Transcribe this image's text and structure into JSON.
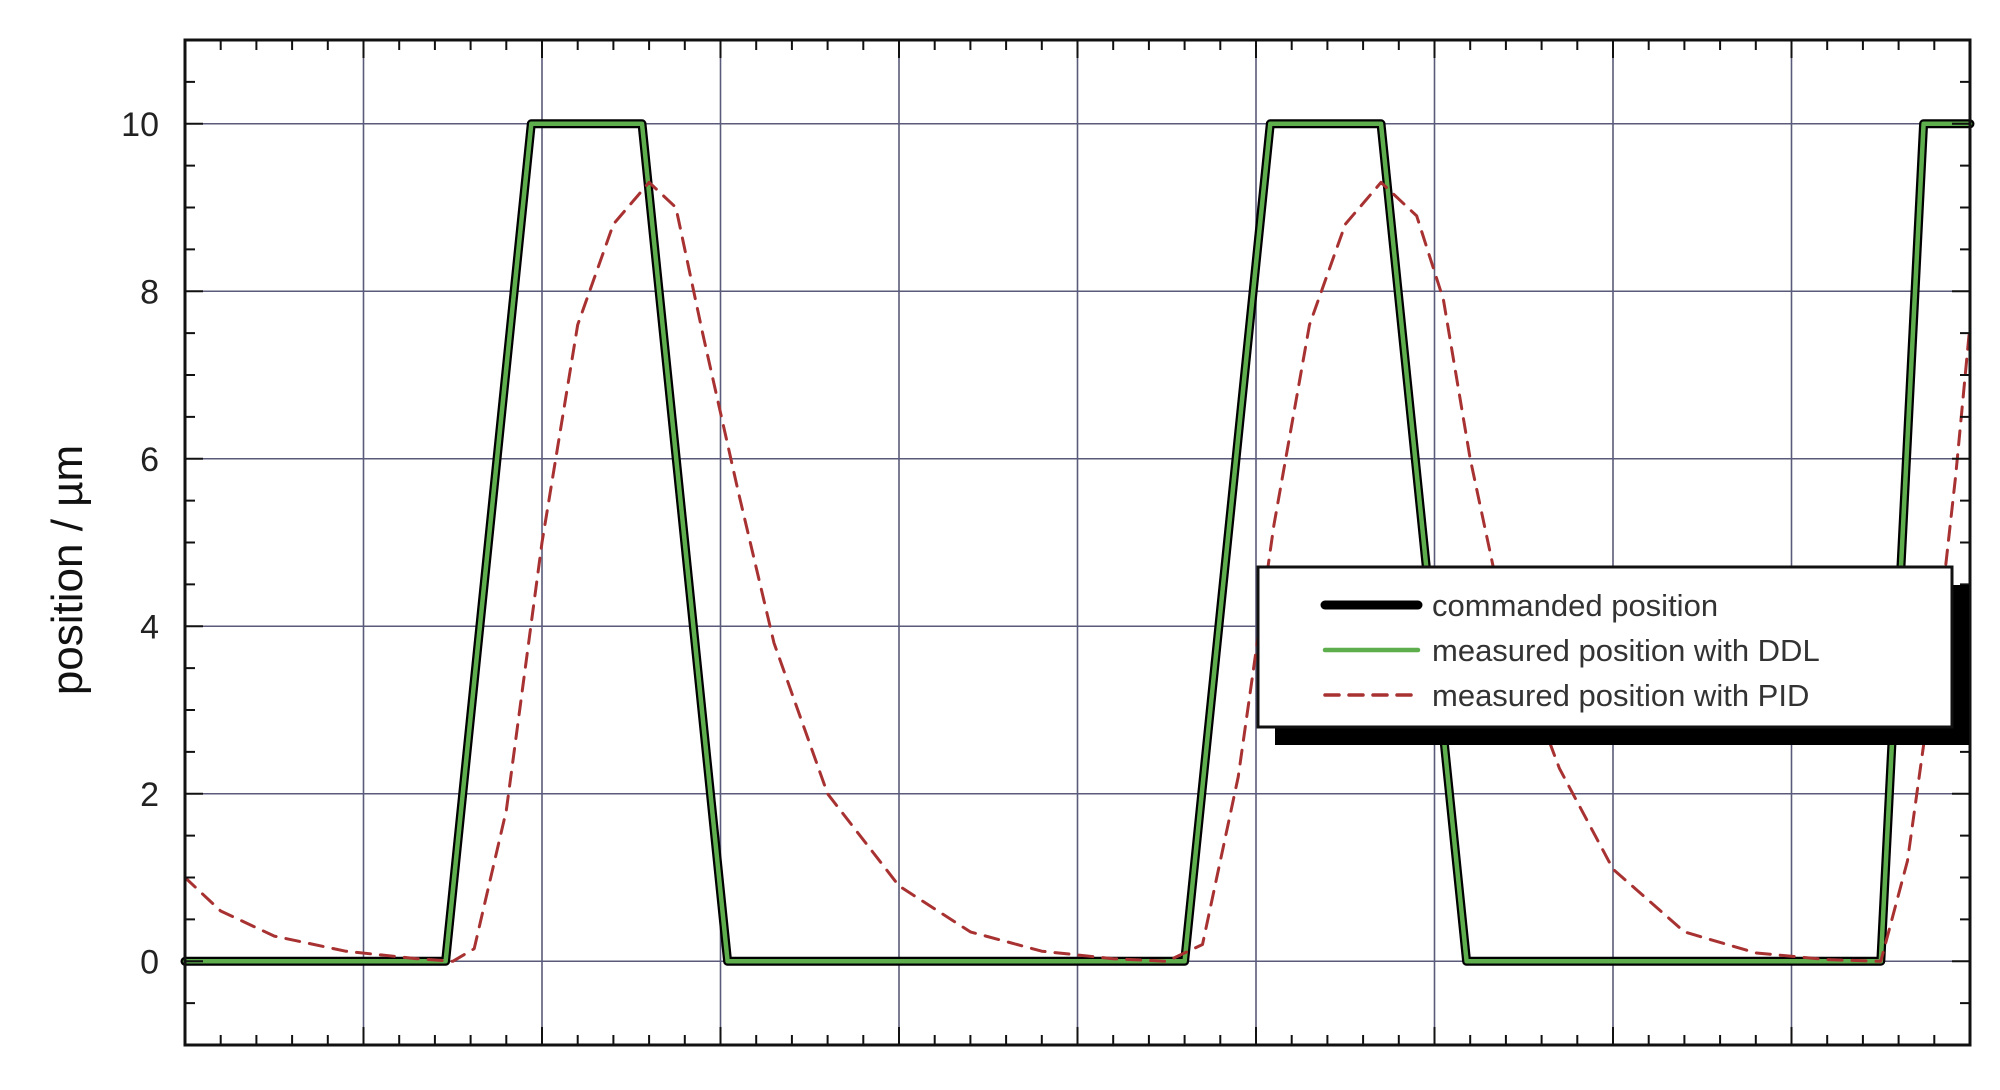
{
  "chart_data": {
    "type": "line",
    "title": "",
    "xlabel": "",
    "ylabel": "position  / µm",
    "ylim": [
      -1,
      11
    ],
    "xlim": [
      0,
      10
    ],
    "yticks": [
      0,
      2,
      4,
      6,
      8,
      10
    ],
    "xtick_labels_shown": false,
    "grid": true,
    "legend_position": "center-right",
    "series": [
      {
        "name": "commanded position",
        "color": "#000000",
        "style": "solid",
        "x": [
          0,
          1.3,
          1.46,
          1.94,
          2.56,
          3.04,
          5.0,
          5.44,
          5.6,
          6.08,
          6.7,
          7.18,
          9.0,
          9.5,
          9.74,
          10
        ],
        "y": [
          0,
          0,
          0,
          10,
          10,
          0,
          0,
          0,
          0,
          10,
          10,
          0,
          0,
          0,
          10,
          10
        ]
      },
      {
        "name": "measured position with DDL",
        "color": "#5fae4e",
        "style": "solid",
        "x": [
          0,
          1.3,
          1.46,
          1.94,
          2.56,
          3.04,
          5.0,
          5.44,
          5.6,
          6.08,
          6.7,
          7.18,
          9.0,
          9.5,
          9.74,
          10
        ],
        "y": [
          0,
          0,
          0,
          10,
          10,
          0,
          0,
          0,
          0,
          10,
          10,
          0,
          0,
          0,
          10,
          10
        ]
      },
      {
        "name": "measured position with PID",
        "color": "#a83232",
        "style": "dashed",
        "x": [
          0,
          0.2,
          0.5,
          0.9,
          1.3,
          1.5,
          1.62,
          1.8,
          2.0,
          2.2,
          2.4,
          2.6,
          2.75,
          2.9,
          3.1,
          3.3,
          3.6,
          4.0,
          4.4,
          4.8,
          5.2,
          5.5,
          5.7,
          5.9,
          6.1,
          6.3,
          6.5,
          6.7,
          6.9,
          7.05,
          7.2,
          7.4,
          7.7,
          8.0,
          8.4,
          8.8,
          9.2,
          9.5,
          9.65,
          9.8,
          9.92,
          10
        ],
        "y": [
          1.0,
          0.6,
          0.3,
          0.12,
          0.03,
          0,
          0.15,
          1.8,
          5.0,
          7.6,
          8.8,
          9.3,
          9.0,
          7.5,
          5.6,
          3.8,
          2.0,
          0.9,
          0.35,
          0.12,
          0.03,
          0,
          0.2,
          2.2,
          5.2,
          7.6,
          8.8,
          9.3,
          8.9,
          7.9,
          6.0,
          4.0,
          2.3,
          1.1,
          0.35,
          0.1,
          0.02,
          0,
          1.2,
          3.5,
          5.8,
          7.6
        ]
      }
    ]
  }
}
